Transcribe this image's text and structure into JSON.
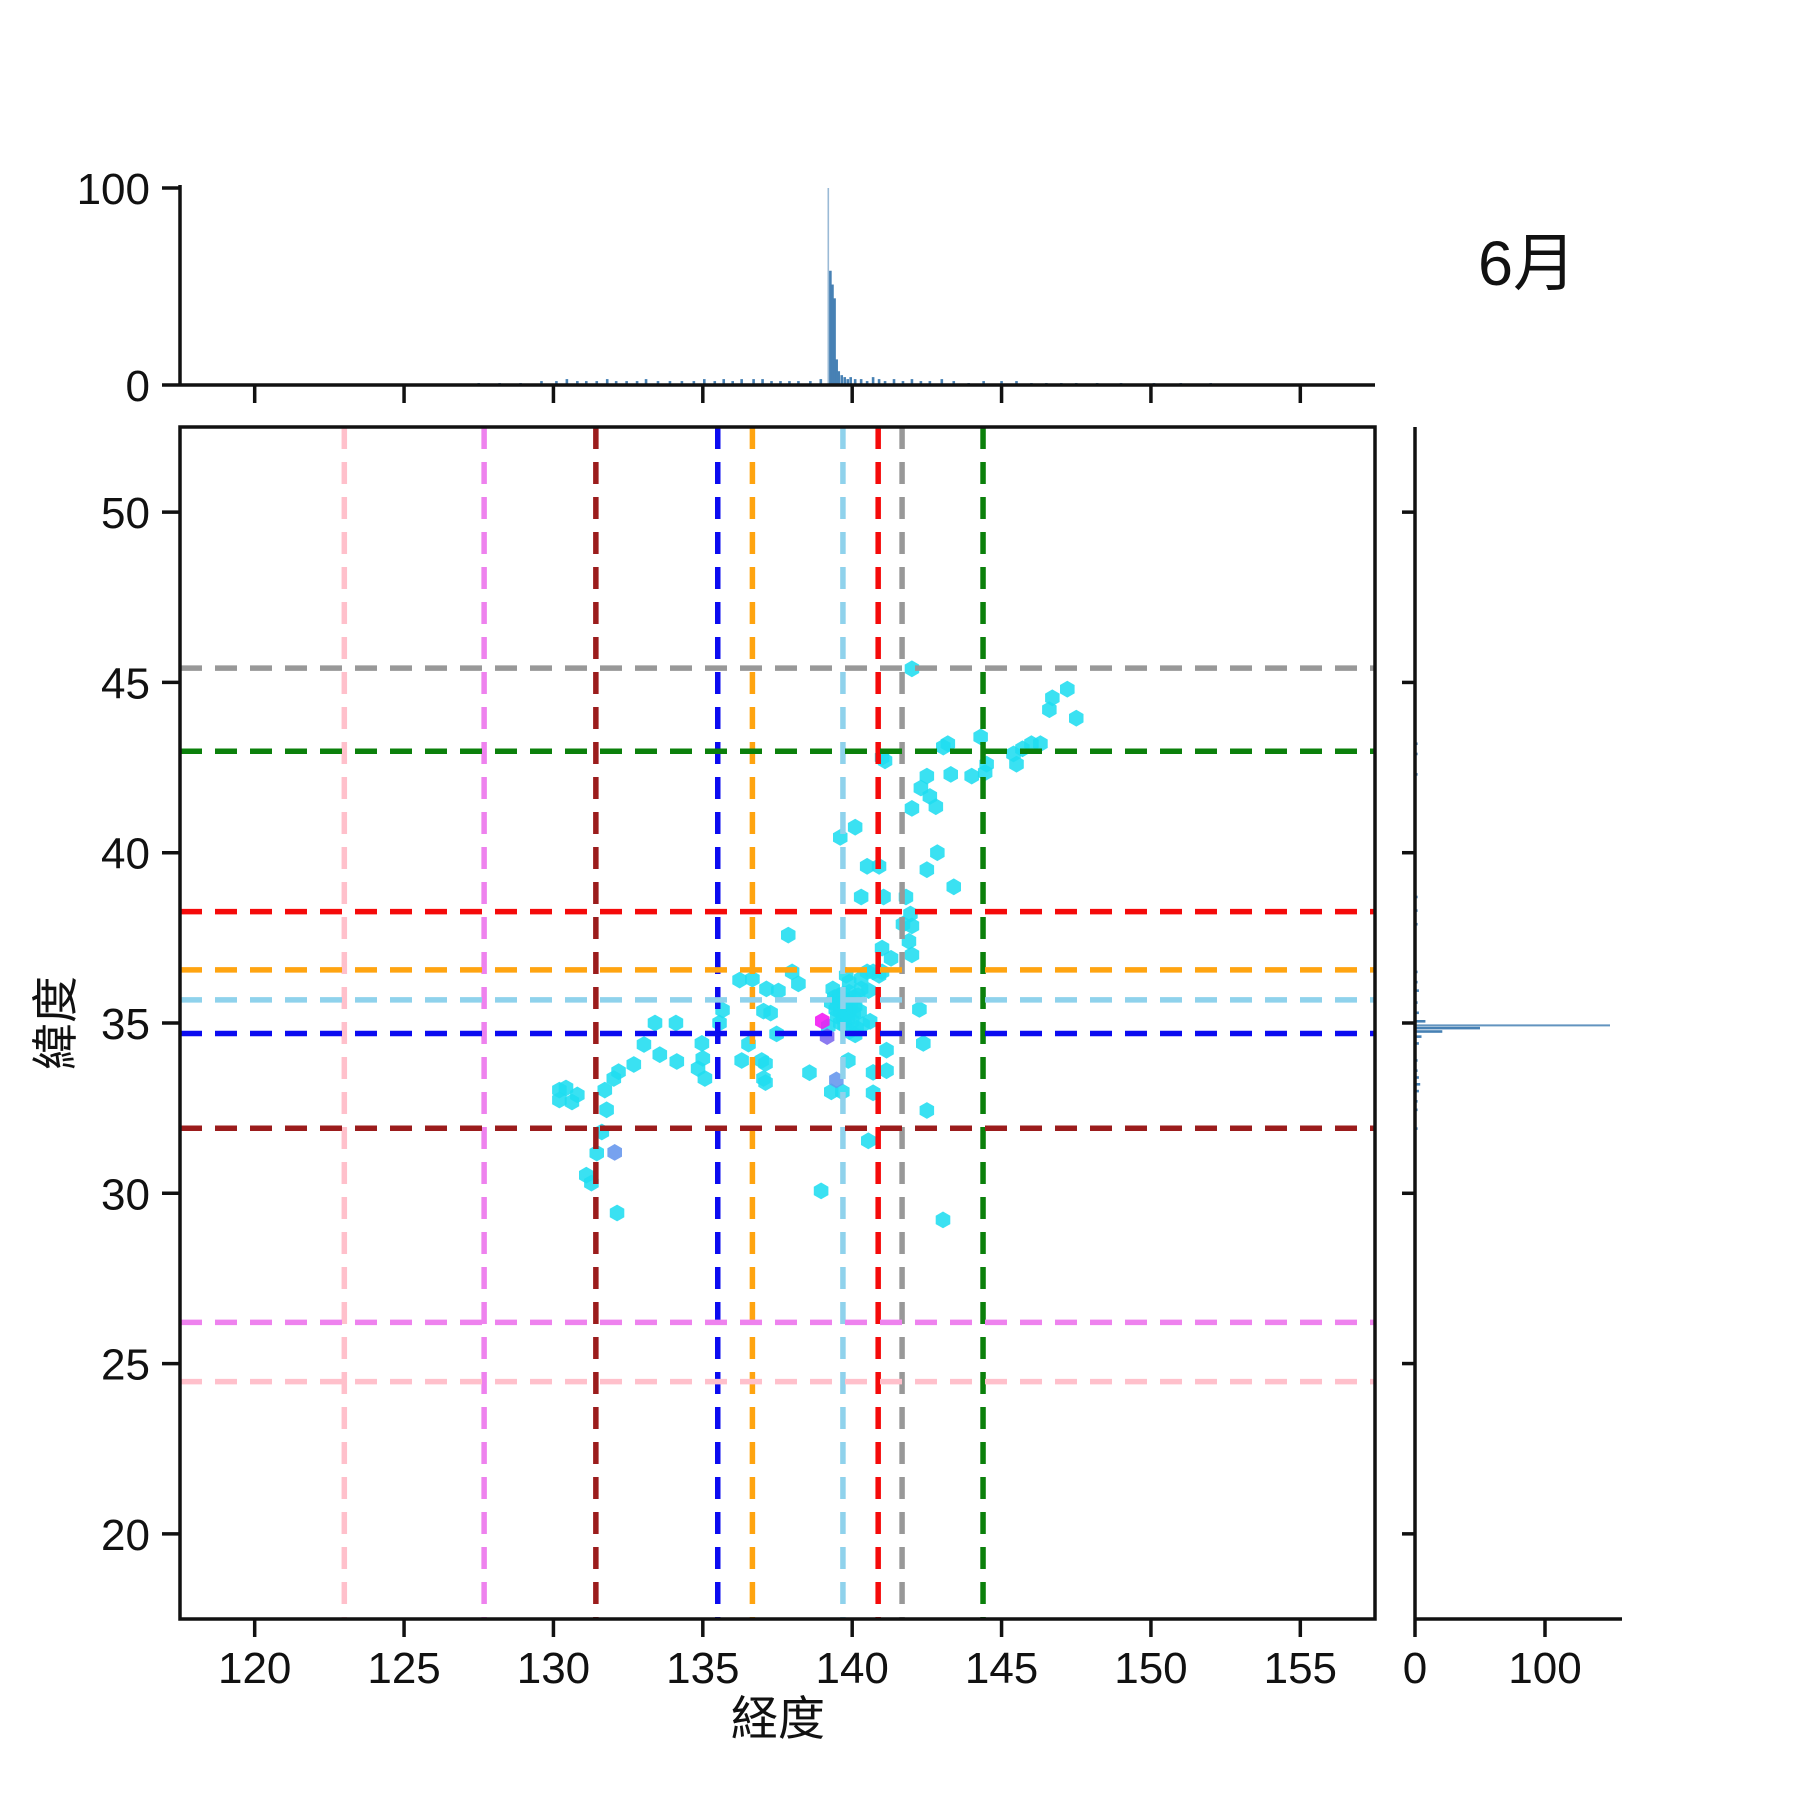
{
  "chart_data": {
    "type": "scatter",
    "title": "6月",
    "xlabel": "経度",
    "ylabel": "緯度",
    "xlim": [
      117.5,
      157.5
    ],
    "ylim": [
      17.5,
      52.5
    ],
    "xticks": [
      120,
      125,
      130,
      135,
      140,
      145,
      150,
      155
    ],
    "yticks": [
      20,
      25,
      30,
      35,
      40,
      45,
      50
    ],
    "marginal_axis_ticks": [
      0,
      100
    ],
    "marginal_tick_labels": [
      "0",
      "100"
    ],
    "top_hist_ylim": [
      0,
      101
    ],
    "right_hist_xlim": [
      0,
      159
    ],
    "grid": false,
    "point_color": "#1FDDF0",
    "hist_color": "#4781B4",
    "spine_color": "#111111",
    "points": [
      [
        130.2,
        33.03
      ],
      [
        130.42,
        33.09
      ],
      [
        130.2,
        32.74
      ],
      [
        130.62,
        32.68
      ],
      [
        130.8,
        32.89
      ],
      [
        131.72,
        33.03
      ],
      [
        131.78,
        32.45
      ],
      [
        131.62,
        31.8
      ],
      [
        131.45,
        31.18
      ],
      [
        131.1,
        30.53
      ],
      [
        131.27,
        30.3
      ],
      [
        132.13,
        29.42
      ],
      [
        132.02,
        33.37
      ],
      [
        132.18,
        33.57
      ],
      [
        132.69,
        33.78
      ],
      [
        133.03,
        34.37
      ],
      [
        133.4,
        35.0
      ],
      [
        134.1,
        35.0
      ],
      [
        133.56,
        34.07
      ],
      [
        134.13,
        33.87
      ],
      [
        134.97,
        34.4
      ],
      [
        135.0,
        33.96
      ],
      [
        134.84,
        33.66
      ],
      [
        135.07,
        33.37
      ],
      [
        135.66,
        35.38
      ],
      [
        135.56,
        35.0
      ],
      [
        136.23,
        36.26
      ],
      [
        136.66,
        36.29
      ],
      [
        137.13,
        36.0
      ],
      [
        137.53,
        35.94
      ],
      [
        137.03,
        35.35
      ],
      [
        137.27,
        35.29
      ],
      [
        137.47,
        34.68
      ],
      [
        136.53,
        34.38
      ],
      [
        136.3,
        33.9
      ],
      [
        136.97,
        33.9
      ],
      [
        137.03,
        33.37
      ],
      [
        137.1,
        33.81
      ],
      [
        137.1,
        33.25
      ],
      [
        138.57,
        33.54
      ],
      [
        137.99,
        36.5
      ],
      [
        137.86,
        37.58
      ],
      [
        138.2,
        36.15
      ],
      [
        139.87,
        33.9
      ],
      [
        139.3,
        32.98
      ],
      [
        139.67,
        32.98
      ],
      [
        140.7,
        33.55
      ],
      [
        141.15,
        33.6
      ],
      [
        141.15,
        34.2
      ],
      [
        140.7,
        32.95
      ],
      [
        142.38,
        34.4
      ],
      [
        142.5,
        32.43
      ],
      [
        140.54,
        31.54
      ],
      [
        138.96,
        30.07
      ],
      [
        143.04,
        29.22
      ],
      [
        139.35,
        36.0
      ],
      [
        139.8,
        36.4
      ],
      [
        139.9,
        36.2
      ],
      [
        140.3,
        36.3
      ],
      [
        140.5,
        36.5
      ],
      [
        140.7,
        36.5
      ],
      [
        140.9,
        36.4
      ],
      [
        141.0,
        36.5
      ],
      [
        140.3,
        36.0
      ],
      [
        140.55,
        35.95
      ],
      [
        140.2,
        35.8
      ],
      [
        140.05,
        35.75
      ],
      [
        139.9,
        35.9
      ],
      [
        139.7,
        35.85
      ],
      [
        139.55,
        35.8
      ],
      [
        139.4,
        35.75
      ],
      [
        139.3,
        35.6
      ],
      [
        139.5,
        35.55
      ],
      [
        139.65,
        35.6
      ],
      [
        139.8,
        35.65
      ],
      [
        139.95,
        35.55
      ],
      [
        140.1,
        35.5
      ],
      [
        139.45,
        35.4
      ],
      [
        139.6,
        35.35
      ],
      [
        139.75,
        35.4
      ],
      [
        139.9,
        35.35
      ],
      [
        140.05,
        35.3
      ],
      [
        140.25,
        35.35
      ],
      [
        139.5,
        35.2
      ],
      [
        139.7,
        35.15
      ],
      [
        139.85,
        35.1
      ],
      [
        140.0,
        35.05
      ],
      [
        139.6,
        35.0
      ],
      [
        139.75,
        34.95
      ],
      [
        139.2,
        34.9
      ],
      [
        140.15,
        34.85
      ],
      [
        140.35,
        34.95
      ],
      [
        140.6,
        35.05
      ],
      [
        142.25,
        35.4
      ],
      [
        139.9,
        34.75
      ],
      [
        140.1,
        34.65
      ],
      [
        141.0,
        37.2
      ],
      [
        141.3,
        36.9
      ],
      [
        141.9,
        37.4
      ],
      [
        142.0,
        37.0
      ],
      [
        141.7,
        37.9
      ],
      [
        142.0,
        37.85
      ],
      [
        141.95,
        38.2
      ],
      [
        141.8,
        38.7
      ],
      [
        141.05,
        38.7
      ],
      [
        140.3,
        38.7
      ],
      [
        140.5,
        39.6
      ],
      [
        140.9,
        39.6
      ],
      [
        139.6,
        40.45
      ],
      [
        140.1,
        40.75
      ],
      [
        142.5,
        39.5
      ],
      [
        142.85,
        40.0
      ],
      [
        143.4,
        39.0
      ],
      [
        142.0,
        41.3
      ],
      [
        142.3,
        41.9
      ],
      [
        142.6,
        41.65
      ],
      [
        142.8,
        41.35
      ],
      [
        141.0,
        42.8
      ],
      [
        141.1,
        42.7
      ],
      [
        142.5,
        42.25
      ],
      [
        143.3,
        42.3
      ],
      [
        144.0,
        42.25
      ],
      [
        143.05,
        43.1
      ],
      [
        143.2,
        43.2
      ],
      [
        144.3,
        43.4
      ],
      [
        144.45,
        42.35
      ],
      [
        144.5,
        42.6
      ],
      [
        145.5,
        42.6
      ],
      [
        145.4,
        42.9
      ],
      [
        145.7,
        43.05
      ],
      [
        146.0,
        43.2
      ],
      [
        146.3,
        43.2
      ],
      [
        142.0,
        45.4
      ],
      [
        146.6,
        44.2
      ],
      [
        147.5,
        43.95
      ],
      [
        147.2,
        44.8
      ],
      [
        146.7,
        44.55
      ]
    ],
    "special_points": [
      {
        "lon": 139.0,
        "lat": 35.06,
        "color": "#F317F3"
      },
      {
        "lon": 139.16,
        "lat": 34.6,
        "color": "#7B68EE"
      },
      {
        "lon": 139.47,
        "lat": 33.33,
        "color": "#6495ED"
      },
      {
        "lon": 132.05,
        "lat": 31.2,
        "color": "#6495ED"
      }
    ],
    "vlines": [
      {
        "x": 123.0,
        "color": "#FFC0CB"
      },
      {
        "x": 127.68,
        "color": "#EE82EE"
      },
      {
        "x": 131.42,
        "color": "#9B1C1C"
      },
      {
        "x": 135.5,
        "color": "#0B0BF0"
      },
      {
        "x": 136.66,
        "color": "#FFA410"
      },
      {
        "x": 139.69,
        "color": "#8FD2EC"
      },
      {
        "x": 140.87,
        "color": "#F50A0A"
      },
      {
        "x": 141.67,
        "color": "#989898"
      },
      {
        "x": 144.38,
        "color": "#0B800B"
      }
    ],
    "hlines": [
      {
        "y": 45.42,
        "color": "#989898"
      },
      {
        "y": 42.98,
        "color": "#0B800B"
      },
      {
        "y": 38.27,
        "color": "#F50A0A"
      },
      {
        "y": 36.56,
        "color": "#FFA410"
      },
      {
        "y": 35.68,
        "color": "#8FD2EC"
      },
      {
        "y": 34.69,
        "color": "#0B0BF0"
      },
      {
        "y": 31.91,
        "color": "#9B1C1C"
      },
      {
        "y": 26.21,
        "color": "#EE82EE"
      },
      {
        "y": 24.47,
        "color": "#FFC0CB"
      }
    ],
    "top_hist": {
      "bars": [
        [
          127.5,
          1
        ],
        [
          128.2,
          1
        ],
        [
          128.9,
          1
        ],
        [
          129.6,
          2
        ],
        [
          130.1,
          2
        ],
        [
          130.45,
          3
        ],
        [
          130.8,
          2
        ],
        [
          131.1,
          2
        ],
        [
          131.45,
          2
        ],
        [
          131.8,
          3
        ],
        [
          132.1,
          2
        ],
        [
          132.45,
          2
        ],
        [
          132.8,
          2
        ],
        [
          133.1,
          3
        ],
        [
          133.5,
          2
        ],
        [
          133.9,
          2
        ],
        [
          134.3,
          2
        ],
        [
          134.7,
          2
        ],
        [
          135.05,
          3
        ],
        [
          135.4,
          2
        ],
        [
          135.7,
          3
        ],
        [
          136.0,
          2
        ],
        [
          136.3,
          3
        ],
        [
          136.7,
          3
        ],
        [
          137.0,
          3
        ],
        [
          137.3,
          2
        ],
        [
          137.6,
          2
        ],
        [
          137.9,
          2
        ],
        [
          138.2,
          2
        ],
        [
          138.6,
          2
        ],
        [
          138.95,
          3
        ],
        [
          139.2,
          100
        ],
        [
          139.27,
          58
        ],
        [
          139.34,
          51
        ],
        [
          139.41,
          44
        ],
        [
          139.48,
          13
        ],
        [
          139.55,
          7
        ],
        [
          139.65,
          5
        ],
        [
          139.75,
          4
        ],
        [
          139.85,
          3
        ],
        [
          139.95,
          4
        ],
        [
          140.1,
          3
        ],
        [
          140.3,
          3
        ],
        [
          140.5,
          2
        ],
        [
          140.7,
          4
        ],
        [
          140.9,
          3
        ],
        [
          141.1,
          2
        ],
        [
          141.4,
          3
        ],
        [
          141.7,
          2
        ],
        [
          142.0,
          3
        ],
        [
          142.3,
          2
        ],
        [
          142.6,
          2
        ],
        [
          143.0,
          3
        ],
        [
          143.4,
          2
        ],
        [
          143.9,
          1
        ],
        [
          144.4,
          2
        ],
        [
          145.0,
          2
        ],
        [
          145.5,
          2
        ],
        [
          146.0,
          1
        ],
        [
          146.5,
          1
        ],
        [
          147.0,
          1
        ],
        [
          147.5,
          1
        ],
        [
          148.2,
          1
        ],
        [
          149.0,
          1
        ],
        [
          150.1,
          1
        ],
        [
          151.0,
          1
        ],
        [
          152.0,
          1
        ]
      ]
    },
    "right_hist": {
      "bars": [
        [
          45.4,
          1
        ],
        [
          44.2,
          1
        ],
        [
          43.2,
          2
        ],
        [
          42.9,
          2
        ],
        [
          42.3,
          2
        ],
        [
          41.9,
          1
        ],
        [
          41.3,
          1
        ],
        [
          40.75,
          1
        ],
        [
          40.0,
          1
        ],
        [
          39.6,
          1
        ],
        [
          38.7,
          2
        ],
        [
          38.3,
          2
        ],
        [
          37.9,
          2
        ],
        [
          37.4,
          1
        ],
        [
          36.9,
          1
        ],
        [
          36.5,
          2
        ],
        [
          36.2,
          2
        ],
        [
          35.95,
          3
        ],
        [
          35.6,
          2
        ],
        [
          35.3,
          3
        ],
        [
          35.05,
          8
        ],
        [
          34.93,
          150
        ],
        [
          34.85,
          50
        ],
        [
          34.75,
          21
        ],
        [
          34.6,
          5
        ],
        [
          34.4,
          3
        ],
        [
          33.9,
          2
        ],
        [
          33.6,
          2
        ],
        [
          33.4,
          3
        ],
        [
          33.2,
          4
        ],
        [
          33.0,
          3
        ],
        [
          32.7,
          2
        ],
        [
          32.45,
          2
        ],
        [
          31.9,
          2
        ],
        [
          31.5,
          1
        ],
        [
          31.15,
          1
        ],
        [
          30.4,
          1
        ],
        [
          30.1,
          1
        ],
        [
          29.3,
          1
        ]
      ]
    }
  }
}
